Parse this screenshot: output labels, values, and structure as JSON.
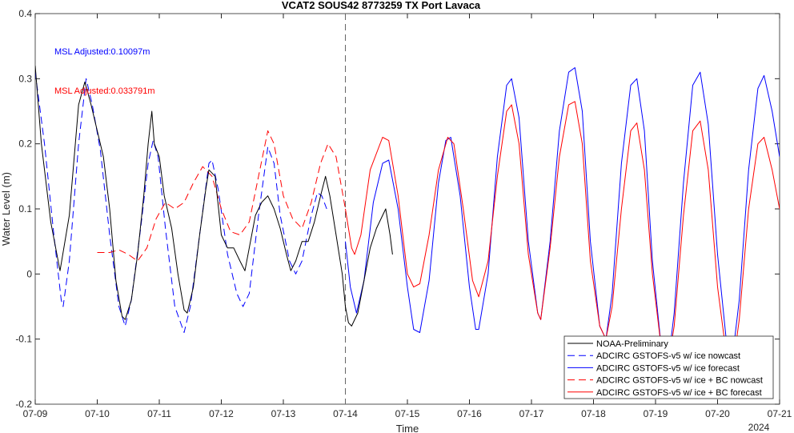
{
  "chart_data": {
    "type": "line",
    "title": "VCAT2 SOUS42 8773259 TX Port Lavaca",
    "xlabel": "Time",
    "ylabel": "Water Level (m)",
    "x_ticks": [
      "07-09",
      "07-10",
      "07-11",
      "07-12",
      "07-13",
      "07-14",
      "07-15",
      "07-16",
      "07-17",
      "07-18",
      "07-19",
      "07-20",
      "07-21"
    ],
    "x_year_label": "2024",
    "xlim_days": [
      9,
      21
    ],
    "ylim": [
      -0.2,
      0.4
    ],
    "y_ticks": [
      "-0.2",
      "-0.1",
      "0",
      "0.1",
      "0.2",
      "0.3",
      "0.4"
    ],
    "forecast_start_day": 14,
    "annotations": [
      {
        "text": "MSL Adjusted:0.10097m",
        "color": "#0000ff"
      },
      {
        "text": "MSL Adjusted:0.033791m",
        "color": "#ff0000"
      }
    ],
    "legend_position": "bottom-right",
    "series": [
      {
        "name": "NOAA-Preliminary",
        "color": "#000000",
        "dash": "solid",
        "points": [
          [
            9.0,
            0.32
          ],
          [
            9.1,
            0.2
          ],
          [
            9.25,
            0.08
          ],
          [
            9.4,
            0.005
          ],
          [
            9.55,
            0.09
          ],
          [
            9.7,
            0.26
          ],
          [
            9.8,
            0.295
          ],
          [
            9.9,
            0.26
          ],
          [
            10.0,
            0.22
          ],
          [
            10.1,
            0.18
          ],
          [
            10.2,
            0.1
          ],
          [
            10.3,
            -0.01
          ],
          [
            10.4,
            -0.065
          ],
          [
            10.45,
            -0.07
          ],
          [
            10.55,
            -0.04
          ],
          [
            10.65,
            0.03
          ],
          [
            10.75,
            0.12
          ],
          [
            10.82,
            0.2
          ],
          [
            10.88,
            0.25
          ],
          [
            10.92,
            0.2
          ],
          [
            11.0,
            0.18
          ],
          [
            11.08,
            0.12
          ],
          [
            11.2,
            0.07
          ],
          [
            11.3,
            0.0
          ],
          [
            11.4,
            -0.055
          ],
          [
            11.45,
            -0.06
          ],
          [
            11.55,
            -0.02
          ],
          [
            11.65,
            0.06
          ],
          [
            11.75,
            0.13
          ],
          [
            11.8,
            0.16
          ],
          [
            11.9,
            0.15
          ],
          [
            12.0,
            0.06
          ],
          [
            12.1,
            0.04
          ],
          [
            12.2,
            0.04
          ],
          [
            12.3,
            0.02
          ],
          [
            12.38,
            0.005
          ],
          [
            12.45,
            0.04
          ],
          [
            12.55,
            0.09
          ],
          [
            12.65,
            0.11
          ],
          [
            12.75,
            0.12
          ],
          [
            12.85,
            0.1
          ],
          [
            12.95,
            0.07
          ],
          [
            13.05,
            0.03
          ],
          [
            13.12,
            0.005
          ],
          [
            13.2,
            0.02
          ],
          [
            13.3,
            0.05
          ],
          [
            13.4,
            0.05
          ],
          [
            13.5,
            0.08
          ],
          [
            13.6,
            0.12
          ],
          [
            13.68,
            0.15
          ],
          [
            13.75,
            0.12
          ],
          [
            13.85,
            0.06
          ],
          [
            13.95,
            0.0
          ],
          [
            14.0,
            -0.05
          ],
          [
            14.05,
            -0.075
          ],
          [
            14.1,
            -0.08
          ],
          [
            14.2,
            -0.06
          ],
          [
            14.3,
            -0.01
          ],
          [
            14.4,
            0.04
          ],
          [
            14.5,
            0.07
          ],
          [
            14.6,
            0.09
          ],
          [
            14.65,
            0.1
          ],
          [
            14.72,
            0.06
          ],
          [
            14.76,
            0.03
          ]
        ]
      },
      {
        "name": "ADCIRC GSTOFS-v5 w/ ice nowcast",
        "color": "#0000ff",
        "dash": "dashed",
        "points": [
          [
            9.0,
            0.31
          ],
          [
            9.15,
            0.2
          ],
          [
            9.3,
            0.06
          ],
          [
            9.42,
            -0.04
          ],
          [
            9.45,
            -0.05
          ],
          [
            9.55,
            0.02
          ],
          [
            9.7,
            0.2
          ],
          [
            9.82,
            0.3
          ],
          [
            9.92,
            0.26
          ],
          [
            10.05,
            0.19
          ],
          [
            10.2,
            0.06
          ],
          [
            10.35,
            -0.05
          ],
          [
            10.45,
            -0.08
          ],
          [
            10.55,
            -0.04
          ],
          [
            10.7,
            0.07
          ],
          [
            10.82,
            0.17
          ],
          [
            10.9,
            0.205
          ],
          [
            10.98,
            0.18
          ],
          [
            11.1,
            0.07
          ],
          [
            11.25,
            -0.05
          ],
          [
            11.4,
            -0.09
          ],
          [
            11.5,
            -0.05
          ],
          [
            11.65,
            0.06
          ],
          [
            11.8,
            0.17
          ],
          [
            11.85,
            0.175
          ],
          [
            11.95,
            0.13
          ],
          [
            12.1,
            0.03
          ],
          [
            12.25,
            -0.03
          ],
          [
            12.35,
            -0.05
          ],
          [
            12.45,
            -0.03
          ],
          [
            12.6,
            0.09
          ],
          [
            12.75,
            0.195
          ],
          [
            12.85,
            0.17
          ],
          [
            12.95,
            0.09
          ],
          [
            13.1,
            0.02
          ],
          [
            13.2,
            0.0
          ],
          [
            13.3,
            0.02
          ],
          [
            13.45,
            0.09
          ],
          [
            13.55,
            0.125
          ],
          [
            13.62,
            0.12
          ],
          [
            13.7,
            0.1
          ]
        ]
      },
      {
        "name": "ADCIRC GSTOFS-v5 w/ ice forecast",
        "color": "#0000ff",
        "dash": "solid",
        "points": [
          [
            14.0,
            0.05
          ],
          [
            14.08,
            -0.02
          ],
          [
            14.18,
            -0.06
          ],
          [
            14.3,
            -0.01
          ],
          [
            14.45,
            0.11
          ],
          [
            14.6,
            0.17
          ],
          [
            14.7,
            0.175
          ],
          [
            14.85,
            0.1
          ],
          [
            15.0,
            -0.02
          ],
          [
            15.1,
            -0.085
          ],
          [
            15.2,
            -0.09
          ],
          [
            15.35,
            -0.01
          ],
          [
            15.5,
            0.14
          ],
          [
            15.62,
            0.205
          ],
          [
            15.7,
            0.21
          ],
          [
            15.85,
            0.12
          ],
          [
            16.0,
            -0.02
          ],
          [
            16.1,
            -0.085
          ],
          [
            16.15,
            -0.085
          ],
          [
            16.3,
            0.0
          ],
          [
            16.45,
            0.18
          ],
          [
            16.6,
            0.29
          ],
          [
            16.68,
            0.3
          ],
          [
            16.8,
            0.24
          ],
          [
            16.95,
            0.05
          ],
          [
            17.1,
            -0.06
          ],
          [
            17.15,
            -0.07
          ],
          [
            17.3,
            0.05
          ],
          [
            17.45,
            0.22
          ],
          [
            17.6,
            0.31
          ],
          [
            17.7,
            0.317
          ],
          [
            17.82,
            0.25
          ],
          [
            17.95,
            0.05
          ],
          [
            18.1,
            -0.08
          ],
          [
            18.2,
            -0.1
          ],
          [
            18.3,
            -0.03
          ],
          [
            18.45,
            0.17
          ],
          [
            18.6,
            0.29
          ],
          [
            18.7,
            0.3
          ],
          [
            18.82,
            0.22
          ],
          [
            18.95,
            0.02
          ],
          [
            19.1,
            -0.12
          ],
          [
            19.2,
            -0.14
          ],
          [
            19.3,
            -0.06
          ],
          [
            19.45,
            0.14
          ],
          [
            19.6,
            0.29
          ],
          [
            19.72,
            0.31
          ],
          [
            19.85,
            0.23
          ],
          [
            20.0,
            0.03
          ],
          [
            20.15,
            -0.11
          ],
          [
            20.25,
            -0.12
          ],
          [
            20.35,
            -0.04
          ],
          [
            20.5,
            0.16
          ],
          [
            20.65,
            0.285
          ],
          [
            20.75,
            0.305
          ],
          [
            20.88,
            0.25
          ],
          [
            21.0,
            0.18
          ]
        ]
      },
      {
        "name": "ADCIRC GSTOFS-v5 w/ ice + BC nowcast",
        "color": "#ff0000",
        "dash": "dashed",
        "points": [
          [
            10.0,
            0.033
          ],
          [
            10.2,
            0.033
          ],
          [
            10.35,
            0.037
          ],
          [
            10.5,
            0.03
          ],
          [
            10.65,
            0.02
          ],
          [
            10.8,
            0.04
          ],
          [
            10.95,
            0.085
          ],
          [
            11.1,
            0.11
          ],
          [
            11.25,
            0.1
          ],
          [
            11.4,
            0.11
          ],
          [
            11.55,
            0.14
          ],
          [
            11.7,
            0.165
          ],
          [
            11.85,
            0.15
          ],
          [
            12.0,
            0.1
          ],
          [
            12.15,
            0.065
          ],
          [
            12.3,
            0.06
          ],
          [
            12.45,
            0.08
          ],
          [
            12.6,
            0.15
          ],
          [
            12.75,
            0.22
          ],
          [
            12.85,
            0.2
          ],
          [
            13.0,
            0.12
          ],
          [
            13.15,
            0.085
          ],
          [
            13.3,
            0.07
          ],
          [
            13.45,
            0.11
          ],
          [
            13.6,
            0.17
          ],
          [
            13.72,
            0.2
          ],
          [
            13.85,
            0.18
          ],
          [
            14.0,
            0.1
          ]
        ]
      },
      {
        "name": "ADCIRC GSTOFS-v5 w/ ice + BC forecast",
        "color": "#ff0000",
        "dash": "solid",
        "points": [
          [
            14.0,
            0.1
          ],
          [
            14.1,
            0.04
          ],
          [
            14.15,
            0.03
          ],
          [
            14.25,
            0.06
          ],
          [
            14.4,
            0.16
          ],
          [
            14.6,
            0.21
          ],
          [
            14.7,
            0.205
          ],
          [
            14.85,
            0.12
          ],
          [
            15.0,
            0.0
          ],
          [
            15.1,
            -0.02
          ],
          [
            15.2,
            -0.015
          ],
          [
            15.35,
            0.06
          ],
          [
            15.5,
            0.16
          ],
          [
            15.65,
            0.21
          ],
          [
            15.75,
            0.2
          ],
          [
            15.9,
            0.1
          ],
          [
            16.05,
            -0.01
          ],
          [
            16.15,
            -0.035
          ],
          [
            16.3,
            0.02
          ],
          [
            16.45,
            0.15
          ],
          [
            16.6,
            0.25
          ],
          [
            16.68,
            0.26
          ],
          [
            16.8,
            0.2
          ],
          [
            16.95,
            0.03
          ],
          [
            17.1,
            -0.06
          ],
          [
            17.15,
            -0.07
          ],
          [
            17.3,
            0.04
          ],
          [
            17.45,
            0.18
          ],
          [
            17.6,
            0.26
          ],
          [
            17.7,
            0.265
          ],
          [
            17.82,
            0.2
          ],
          [
            17.95,
            0.02
          ],
          [
            18.1,
            -0.08
          ],
          [
            18.2,
            -0.1
          ],
          [
            18.3,
            -0.05
          ],
          [
            18.45,
            0.1
          ],
          [
            18.6,
            0.22
          ],
          [
            18.7,
            0.232
          ],
          [
            18.82,
            0.16
          ],
          [
            18.95,
            0.0
          ],
          [
            19.1,
            -0.12
          ],
          [
            19.2,
            -0.14
          ],
          [
            19.3,
            -0.08
          ],
          [
            19.45,
            0.09
          ],
          [
            19.6,
            0.22
          ],
          [
            19.72,
            0.235
          ],
          [
            19.85,
            0.16
          ],
          [
            20.0,
            -0.02
          ],
          [
            20.15,
            -0.13
          ],
          [
            20.25,
            -0.14
          ],
          [
            20.35,
            -0.07
          ],
          [
            20.5,
            0.1
          ],
          [
            20.65,
            0.2
          ],
          [
            20.75,
            0.21
          ],
          [
            20.88,
            0.16
          ],
          [
            21.0,
            0.1
          ]
        ]
      }
    ]
  }
}
